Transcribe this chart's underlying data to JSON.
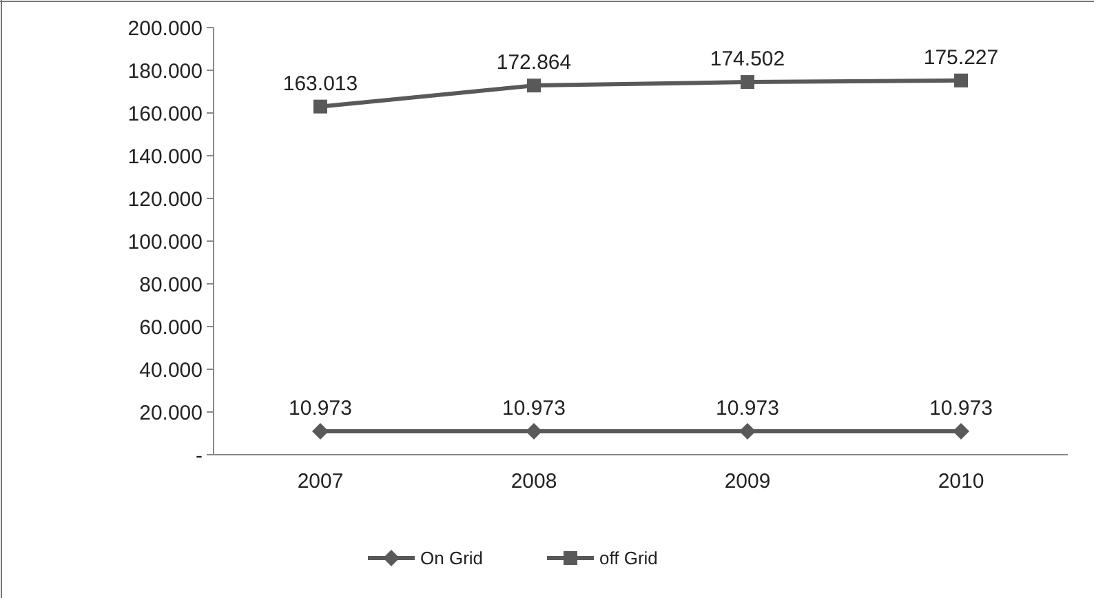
{
  "chart_data": {
    "type": "line",
    "categories": [
      "2007",
      "2008",
      "2009",
      "2010"
    ],
    "series": [
      {
        "name": "On Grid",
        "color": "#595959",
        "marker": "diamond",
        "values": [
          10973,
          10973,
          10973,
          10973
        ],
        "value_labels": [
          "10.973",
          "10.973",
          "10.973",
          "10.973"
        ]
      },
      {
        "name": "off Grid",
        "color": "#595959",
        "marker": "square",
        "values": [
          163013,
          172864,
          174502,
          175227
        ],
        "value_labels": [
          "163.013",
          "172.864",
          "174.502",
          "175.227"
        ]
      }
    ],
    "ylim": [
      0,
      200000
    ],
    "yticks": [
      {
        "value": 0,
        "label": "-"
      },
      {
        "value": 20000,
        "label": "20.000"
      },
      {
        "value": 40000,
        "label": "40.000"
      },
      {
        "value": 60000,
        "label": "60.000"
      },
      {
        "value": 80000,
        "label": "80.000"
      },
      {
        "value": 100000,
        "label": "100.000"
      },
      {
        "value": 120000,
        "label": "120.000"
      },
      {
        "value": 140000,
        "label": "140.000"
      },
      {
        "value": 160000,
        "label": "160.000"
      },
      {
        "value": 180000,
        "label": "180.000"
      },
      {
        "value": 200000,
        "label": "200.000"
      }
    ],
    "legend": "bottom",
    "line_style": "solid"
  }
}
